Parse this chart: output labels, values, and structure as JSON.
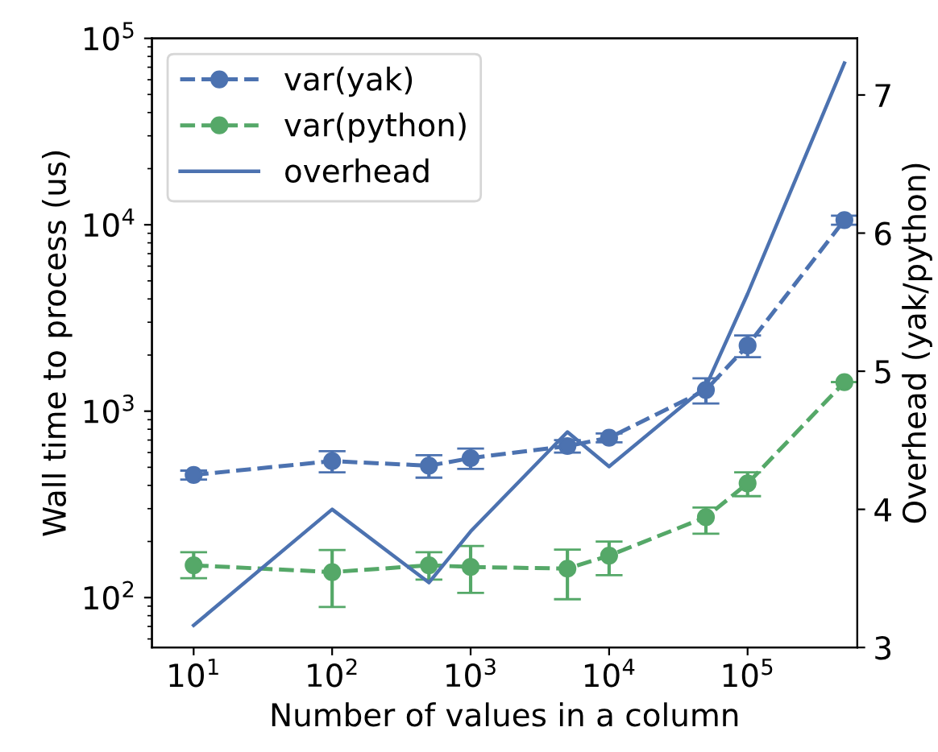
{
  "chart_data": {
    "type": "line",
    "xlabel": "Number of values in a column",
    "ylabel": "Wall time to process (us)",
    "y2label": "Overhead (yak/python)",
    "x": [
      10,
      100,
      500,
      1000,
      5000,
      10000,
      50000,
      100000,
      500000
    ],
    "series": [
      {
        "name": "var(yak)",
        "color": "#4c72b0",
        "line_style": "dashed",
        "marker": "circle",
        "values": [
          455,
          540,
          510,
          560,
          650,
          720,
          1300,
          2250,
          10600
        ],
        "errors": [
          25,
          70,
          70,
          70,
          50,
          40,
          200,
          300,
          600
        ]
      },
      {
        "name": "var(python)",
        "color": "#55a868",
        "line_style": "dashed",
        "marker": "circle",
        "values": [
          149,
          137,
          149,
          146,
          143,
          168,
          270,
          410,
          1430
        ],
        "errors": [
          [
            127,
            175
          ],
          [
            89,
            180
          ],
          [
            125,
            175
          ],
          [
            106,
            189
          ],
          [
            98,
            181
          ],
          [
            132,
            200
          ],
          [
            220,
            304
          ],
          [
            350,
            470
          ],
          null
        ]
      },
      {
        "name": "overhead",
        "color": "#4c72b0",
        "line_style": "solid",
        "marker": "none",
        "axis": "y2",
        "values": [
          3.16,
          4.0,
          3.47,
          3.84,
          4.56,
          4.31,
          4.89,
          5.56,
          7.23
        ]
      }
    ],
    "log": "xy",
    "xlim": [
      5,
      620000
    ],
    "xticks": [
      {
        "value": 10,
        "label": "10$^{1}$"
      },
      {
        "value": 100,
        "label": "10$^{2}$"
      },
      {
        "value": 1000,
        "label": "10$^{3}$"
      },
      {
        "value": 10000,
        "label": "10$^{4}$"
      },
      {
        "value": 100000,
        "label": "10$^{5}$"
      }
    ],
    "ylim": [
      54,
      100000
    ],
    "yticks": [
      {
        "value": 100,
        "label": "10$^{2}$"
      },
      {
        "value": 1000,
        "label": "10$^{3}$"
      },
      {
        "value": 10000,
        "label": "10$^{4}$"
      },
      {
        "value": 100000,
        "label": "10$^{5}$"
      }
    ],
    "y2lim": [
      3.0,
      7.41
    ],
    "y2ticks": [
      3,
      4,
      5,
      6,
      7
    ],
    "grid": false,
    "legend": "top left"
  }
}
